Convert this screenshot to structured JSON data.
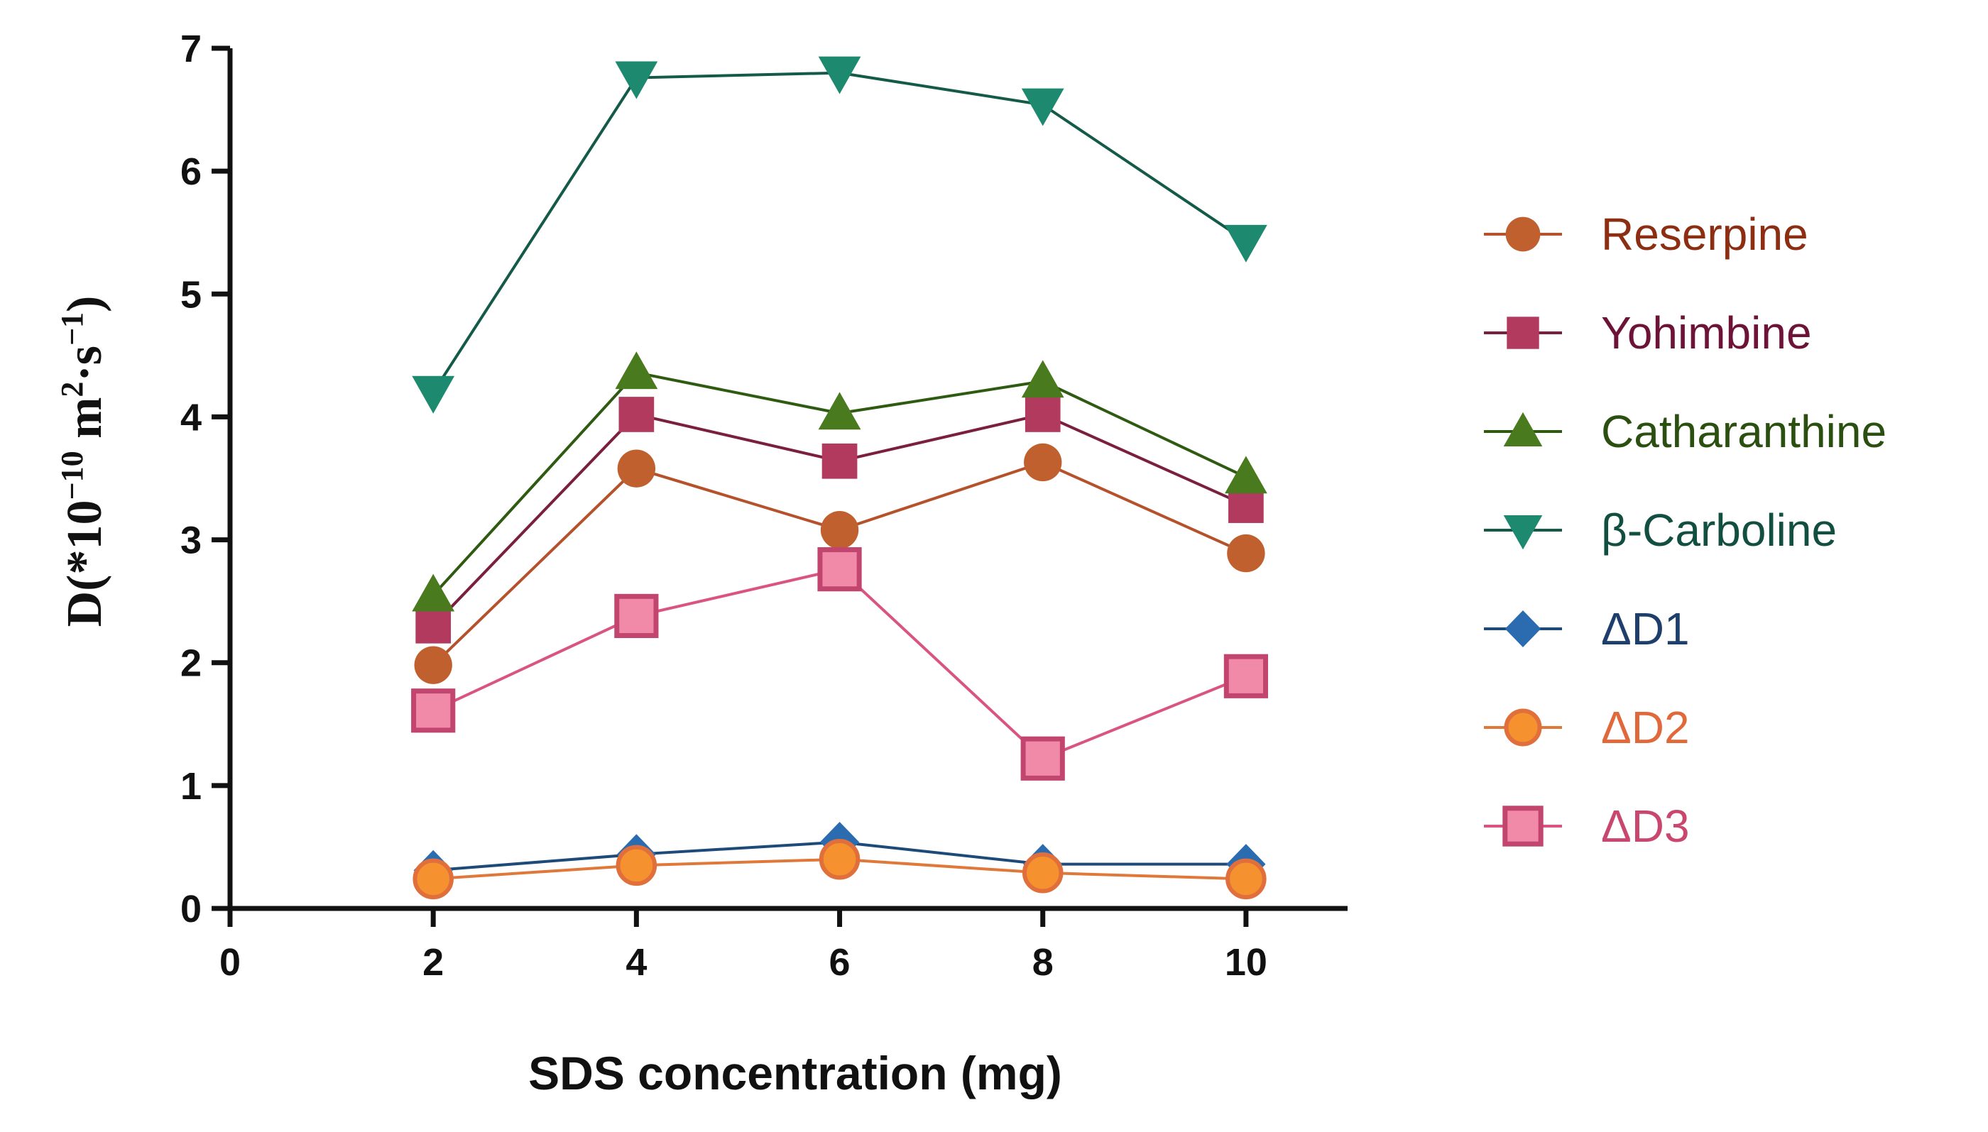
{
  "chart_data": {
    "type": "line",
    "title": "",
    "xlabel": "SDS  concentration (mg)",
    "ylabel": {
      "prefix": "D(*10",
      "exp1": "−10",
      "mid": " m",
      "exp2": "2",
      "mid2": "·s",
      "exp3": "−1",
      "suffix": ")"
    },
    "xlim": [
      0,
      11
    ],
    "ylim": [
      0,
      7
    ],
    "xticks": [
      0,
      2,
      4,
      6,
      8,
      10
    ],
    "yticks": [
      0,
      1,
      2,
      3,
      4,
      5,
      6,
      7
    ],
    "grid": false,
    "legend_position": "right",
    "x": [
      2,
      4,
      6,
      8,
      10
    ],
    "series": [
      {
        "name": "Reserpine",
        "values": [
          1.98,
          3.58,
          3.08,
          3.63,
          2.89
        ],
        "color": "#b5512b",
        "marker": "circle",
        "fill": "#c0602f",
        "edge": "#c0602f",
        "text_color": "#8b2e12"
      },
      {
        "name": "Yohimbine",
        "values": [
          2.3,
          4.02,
          3.64,
          4.02,
          3.28
        ],
        "color": "#7a1f3d",
        "marker": "square",
        "fill": "#b23a5f",
        "edge": "#b23a5f",
        "text_color": "#6e1338"
      },
      {
        "name": "Catharanthine",
        "values": [
          2.55,
          4.36,
          4.03,
          4.29,
          3.51
        ],
        "color": "#2f5a12",
        "marker": "triangle-up",
        "fill": "#4a7a1e",
        "edge": "#4a7a1e",
        "text_color": "#2b4f10"
      },
      {
        "name": "β-Carboline",
        "values": [
          4.2,
          6.76,
          6.8,
          6.54,
          5.43
        ],
        "color": "#145a48",
        "marker": "triangle-down",
        "fill": "#1d8a70",
        "edge": "#1d8a70",
        "text_color": "#124f41"
      },
      {
        "name": "ΔD1",
        "values": [
          0.31,
          0.44,
          0.54,
          0.36,
          0.36
        ],
        "color": "#1e4a7a",
        "marker": "diamond",
        "fill": "#2b6cb0",
        "edge": "#2b6cb0",
        "text_color": "#1e3f6b"
      },
      {
        "name": "ΔD2",
        "values": [
          0.24,
          0.35,
          0.4,
          0.29,
          0.24
        ],
        "color": "#e0783a",
        "marker": "circle-outline",
        "fill": "#f5922f",
        "edge": "#e06f3c",
        "text_color": "#e0683a"
      },
      {
        "name": "ΔD3",
        "values": [
          1.61,
          2.38,
          2.76,
          1.22,
          1.89
        ],
        "color": "#d9557f",
        "marker": "square-outline",
        "fill": "#f08aa8",
        "edge": "#c2456f",
        "text_color": "#c9476f"
      }
    ]
  }
}
